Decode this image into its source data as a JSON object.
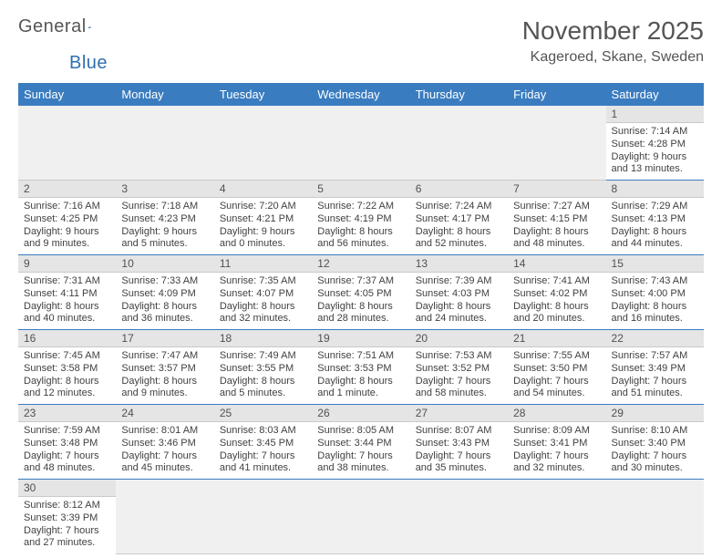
{
  "logo": {
    "text1": "General",
    "text2": "Blue"
  },
  "title": "November 2025",
  "location": "Kageroed, Skane, Sweden",
  "colors": {
    "header_bg": "#3a7cc0",
    "header_text": "#ffffff",
    "daynum_bg": "#e5e5e5",
    "row_border": "#3a7cc0",
    "blank_bg": "#f0f0f0"
  },
  "day_headers": [
    "Sunday",
    "Monday",
    "Tuesday",
    "Wednesday",
    "Thursday",
    "Friday",
    "Saturday"
  ],
  "weeks": [
    [
      null,
      null,
      null,
      null,
      null,
      null,
      {
        "n": "1",
        "sr": "7:14 AM",
        "ss": "4:28 PM",
        "dl": "9 hours and 13 minutes."
      }
    ],
    [
      {
        "n": "2",
        "sr": "7:16 AM",
        "ss": "4:25 PM",
        "dl": "9 hours and 9 minutes."
      },
      {
        "n": "3",
        "sr": "7:18 AM",
        "ss": "4:23 PM",
        "dl": "9 hours and 5 minutes."
      },
      {
        "n": "4",
        "sr": "7:20 AM",
        "ss": "4:21 PM",
        "dl": "9 hours and 0 minutes."
      },
      {
        "n": "5",
        "sr": "7:22 AM",
        "ss": "4:19 PM",
        "dl": "8 hours and 56 minutes."
      },
      {
        "n": "6",
        "sr": "7:24 AM",
        "ss": "4:17 PM",
        "dl": "8 hours and 52 minutes."
      },
      {
        "n": "7",
        "sr": "7:27 AM",
        "ss": "4:15 PM",
        "dl": "8 hours and 48 minutes."
      },
      {
        "n": "8",
        "sr": "7:29 AM",
        "ss": "4:13 PM",
        "dl": "8 hours and 44 minutes."
      }
    ],
    [
      {
        "n": "9",
        "sr": "7:31 AM",
        "ss": "4:11 PM",
        "dl": "8 hours and 40 minutes."
      },
      {
        "n": "10",
        "sr": "7:33 AM",
        "ss": "4:09 PM",
        "dl": "8 hours and 36 minutes."
      },
      {
        "n": "11",
        "sr": "7:35 AM",
        "ss": "4:07 PM",
        "dl": "8 hours and 32 minutes."
      },
      {
        "n": "12",
        "sr": "7:37 AM",
        "ss": "4:05 PM",
        "dl": "8 hours and 28 minutes."
      },
      {
        "n": "13",
        "sr": "7:39 AM",
        "ss": "4:03 PM",
        "dl": "8 hours and 24 minutes."
      },
      {
        "n": "14",
        "sr": "7:41 AM",
        "ss": "4:02 PM",
        "dl": "8 hours and 20 minutes."
      },
      {
        "n": "15",
        "sr": "7:43 AM",
        "ss": "4:00 PM",
        "dl": "8 hours and 16 minutes."
      }
    ],
    [
      {
        "n": "16",
        "sr": "7:45 AM",
        "ss": "3:58 PM",
        "dl": "8 hours and 12 minutes."
      },
      {
        "n": "17",
        "sr": "7:47 AM",
        "ss": "3:57 PM",
        "dl": "8 hours and 9 minutes."
      },
      {
        "n": "18",
        "sr": "7:49 AM",
        "ss": "3:55 PM",
        "dl": "8 hours and 5 minutes."
      },
      {
        "n": "19",
        "sr": "7:51 AM",
        "ss": "3:53 PM",
        "dl": "8 hours and 1 minute."
      },
      {
        "n": "20",
        "sr": "7:53 AM",
        "ss": "3:52 PM",
        "dl": "7 hours and 58 minutes."
      },
      {
        "n": "21",
        "sr": "7:55 AM",
        "ss": "3:50 PM",
        "dl": "7 hours and 54 minutes."
      },
      {
        "n": "22",
        "sr": "7:57 AM",
        "ss": "3:49 PM",
        "dl": "7 hours and 51 minutes."
      }
    ],
    [
      {
        "n": "23",
        "sr": "7:59 AM",
        "ss": "3:48 PM",
        "dl": "7 hours and 48 minutes."
      },
      {
        "n": "24",
        "sr": "8:01 AM",
        "ss": "3:46 PM",
        "dl": "7 hours and 45 minutes."
      },
      {
        "n": "25",
        "sr": "8:03 AM",
        "ss": "3:45 PM",
        "dl": "7 hours and 41 minutes."
      },
      {
        "n": "26",
        "sr": "8:05 AM",
        "ss": "3:44 PM",
        "dl": "7 hours and 38 minutes."
      },
      {
        "n": "27",
        "sr": "8:07 AM",
        "ss": "3:43 PM",
        "dl": "7 hours and 35 minutes."
      },
      {
        "n": "28",
        "sr": "8:09 AM",
        "ss": "3:41 PM",
        "dl": "7 hours and 32 minutes."
      },
      {
        "n": "29",
        "sr": "8:10 AM",
        "ss": "3:40 PM",
        "dl": "7 hours and 30 minutes."
      }
    ],
    [
      {
        "n": "30",
        "sr": "8:12 AM",
        "ss": "3:39 PM",
        "dl": "7 hours and 27 minutes."
      },
      null,
      null,
      null,
      null,
      null,
      null
    ]
  ],
  "labels": {
    "sunrise": "Sunrise:",
    "sunset": "Sunset:",
    "daylight": "Daylight:"
  }
}
